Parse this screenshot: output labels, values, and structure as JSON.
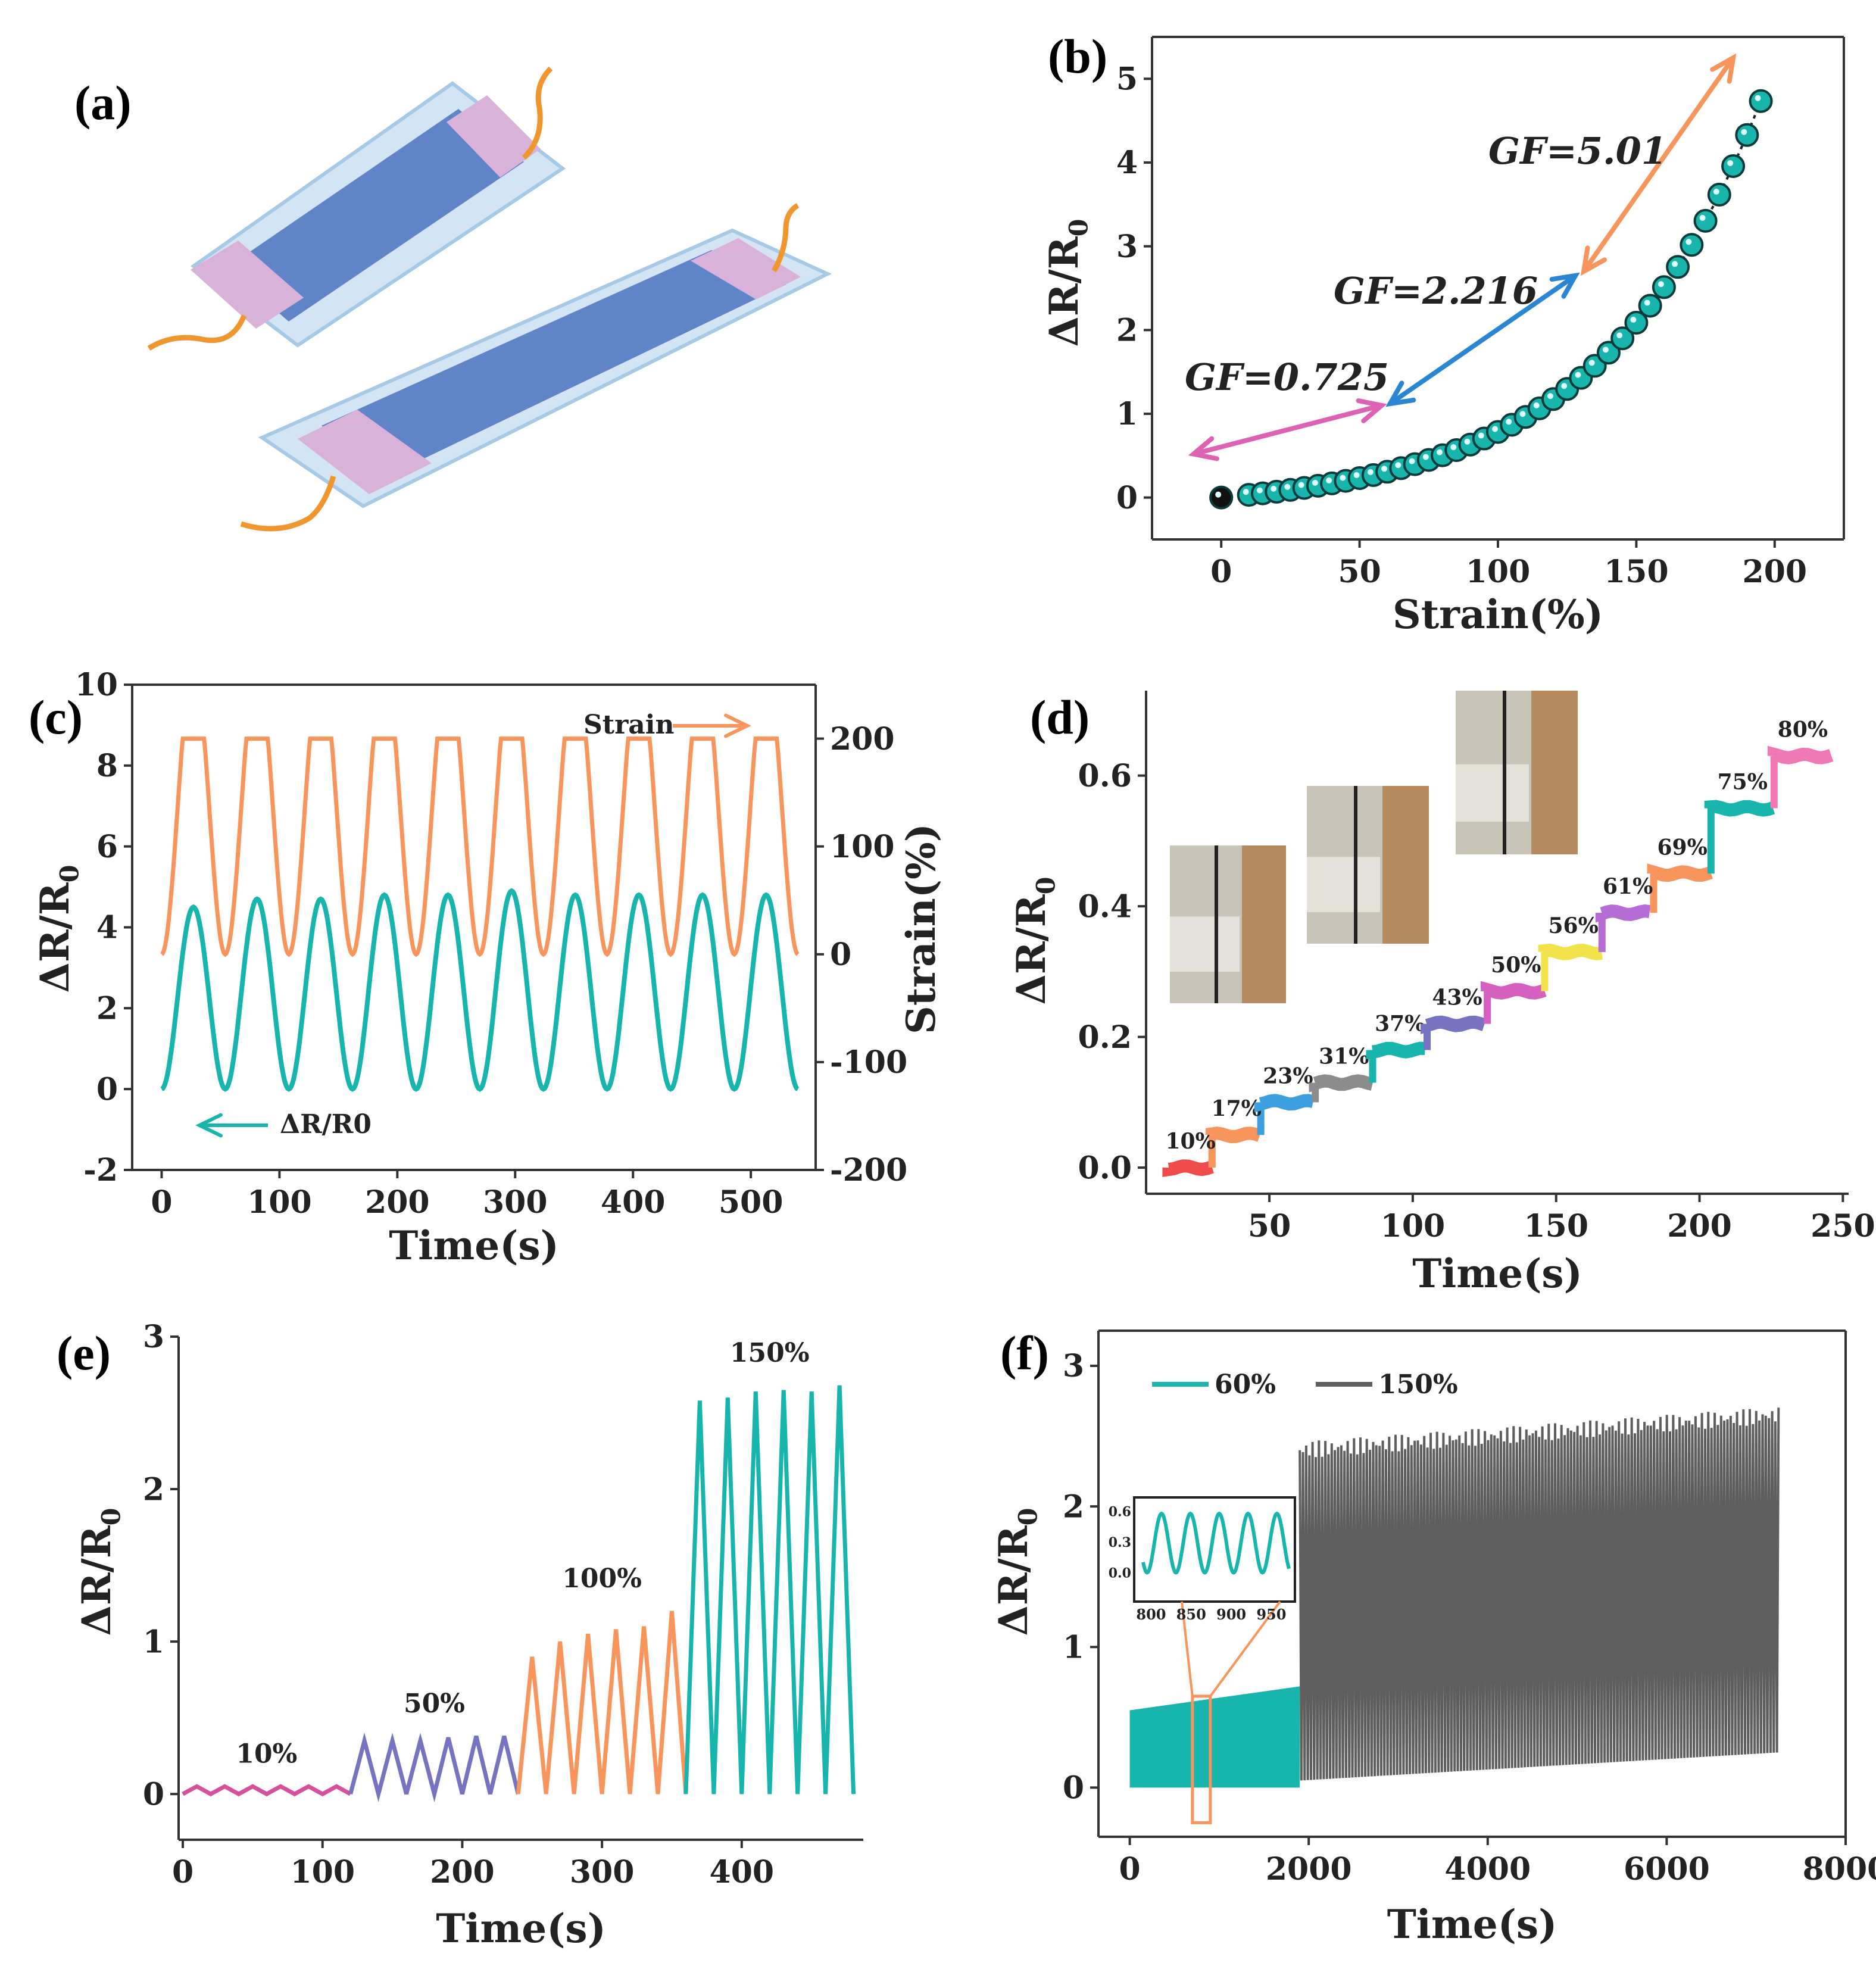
{
  "panel_letters": {
    "a": "(a)",
    "b": "(b)",
    "c": "(c)",
    "d": "(d)",
    "e": "(e)",
    "f": "(f)"
  },
  "colors": {
    "teal": "#18b5ad",
    "orange": "#f7955c",
    "pink": "#dd62b4",
    "blue": "#2a86d2",
    "gray": "#5e5e5e",
    "purple": "#7773c0",
    "magenta": "#d6519c"
  },
  "chart_data": [
    {
      "panel": "b",
      "type": "scatter",
      "xlabel": "Strain(%)",
      "ylabel": "ΔR/R0",
      "xlim": [
        -25,
        225
      ],
      "ylim": [
        -0.5,
        5.5
      ],
      "xticks": [
        0,
        50,
        100,
        150,
        200
      ],
      "yticks": [
        0,
        1,
        2,
        3,
        4,
        5
      ],
      "x": [
        0,
        10,
        15,
        20,
        25,
        30,
        35,
        40,
        45,
        50,
        55,
        60,
        65,
        70,
        75,
        80,
        85,
        90,
        95,
        100,
        105,
        110,
        115,
        120,
        125,
        130,
        135,
        140,
        145,
        150,
        155,
        160,
        165,
        170,
        175,
        180,
        185,
        190,
        195
      ],
      "annotations": [
        "GF=0.725",
        "GF=2.216",
        "GF=5.01"
      ]
    },
    {
      "panel": "c",
      "type": "line",
      "xlabel": "Time(s)",
      "ylabel": "ΔR/R0",
      "y2label": "Strain(%)",
      "xlim": [
        -25,
        555
      ],
      "ylim": [
        -2,
        10
      ],
      "y2lim": [
        -200,
        250
      ],
      "xticks": [
        0,
        100,
        200,
        300,
        400,
        500
      ],
      "yticks": [
        -2,
        0,
        2,
        4,
        6,
        8,
        10
      ],
      "y2ticks": [
        -200,
        -100,
        0,
        100,
        200
      ],
      "cycles": 10,
      "period_s": 54,
      "series": [
        {
          "name": "ΔR/R0",
          "axis": "left",
          "min": 0,
          "peaks": [
            4.5,
            4.7,
            4.7,
            4.8,
            4.8,
            4.9,
            4.8,
            4.8,
            4.8,
            4.8
          ]
        },
        {
          "name": "Strain",
          "axis": "right",
          "min": 0,
          "max": 200
        }
      ],
      "legend": {
        "strain": "Strain",
        "dr": "ΔR/R0"
      }
    },
    {
      "panel": "d",
      "type": "line",
      "xlabel": "Time(s)",
      "ylabel": "ΔR/R0",
      "xlim": [
        7,
        252
      ],
      "ylim": [
        -0.04,
        0.73
      ],
      "xticks": [
        50,
        100,
        150,
        200,
        250
      ],
      "yticks": [
        0.0,
        0.2,
        0.4,
        0.6
      ],
      "steps": [
        {
          "label": "10%",
          "t0": 15,
          "t1": 30,
          "value": 0.0
        },
        {
          "label": "17%",
          "t0": 30,
          "t1": 47,
          "value": 0.05
        },
        {
          "label": "23%",
          "t0": 47,
          "t1": 66,
          "value": 0.1
        },
        {
          "label": "31%",
          "t0": 66,
          "t1": 86,
          "value": 0.13
        },
        {
          "label": "37%",
          "t0": 86,
          "t1": 105,
          "value": 0.18
        },
        {
          "label": "43%",
          "t0": 105,
          "t1": 126,
          "value": 0.22
        },
        {
          "label": "50%",
          "t0": 126,
          "t1": 146,
          "value": 0.27
        },
        {
          "label": "56%",
          "t0": 146,
          "t1": 166,
          "value": 0.33
        },
        {
          "label": "61%",
          "t0": 166,
          "t1": 184,
          "value": 0.39
        },
        {
          "label": "69%",
          "t0": 184,
          "t1": 204,
          "value": 0.45
        },
        {
          "label": "75%",
          "t0": 204,
          "t1": 226,
          "value": 0.55
        },
        {
          "label": "80%",
          "t0": 226,
          "t1": 246,
          "value": 0.63
        }
      ]
    },
    {
      "panel": "e",
      "type": "line",
      "xlabel": "Time(s)",
      "ylabel": "ΔR/R0",
      "xlim": [
        -3,
        487
      ],
      "ylim": [
        -0.3,
        3
      ],
      "xticks": [
        0,
        100,
        200,
        300,
        400
      ],
      "yticks": [
        0,
        1,
        2,
        3
      ],
      "segments": [
        {
          "label": "10%",
          "t0": 0,
          "t1": 120,
          "cycles": 6,
          "peaks": [
            0.05,
            0.05,
            0.05,
            0.05,
            0.05,
            0.05
          ]
        },
        {
          "label": "50%",
          "t0": 120,
          "t1": 240,
          "cycles": 6,
          "peaks": [
            0.35,
            0.35,
            0.35,
            0.37,
            0.38,
            0.38
          ]
        },
        {
          "label": "100%",
          "t0": 240,
          "t1": 360,
          "cycles": 6,
          "peaks": [
            0.9,
            1.0,
            1.05,
            1.08,
            1.1,
            1.2
          ]
        },
        {
          "label": "150%",
          "t0": 360,
          "t1": 480,
          "cycles": 6,
          "peaks": [
            2.58,
            2.6,
            2.64,
            2.65,
            2.64,
            2.68
          ]
        }
      ]
    },
    {
      "panel": "f",
      "type": "line",
      "xlabel": "Time(s)",
      "ylabel": "ΔR/R0",
      "xlim": [
        -350,
        8000
      ],
      "ylim": [
        -0.35,
        3.25
      ],
      "xticks": [
        0,
        2000,
        4000,
        6000,
        8000
      ],
      "yticks": [
        0,
        1,
        2,
        3
      ],
      "series": [
        {
          "name": "60%",
          "t0": 0,
          "t1": 1900,
          "min": 0.0,
          "max_start": 0.55,
          "max_end": 0.72
        },
        {
          "name": "150%",
          "t0": 1900,
          "t1": 7250,
          "min_start": 0.05,
          "min_end": 0.25,
          "max_start": 2.4,
          "max_end": 2.65
        }
      ],
      "inset": {
        "xticks": [
          800,
          850,
          900,
          950
        ],
        "yticks": [
          0.0,
          0.3,
          0.6
        ],
        "xlim": [
          790,
          972
        ],
        "ylim": [
          -0.05,
          0.68
        ],
        "cycles": 5,
        "peak": 0.58
      }
    }
  ]
}
